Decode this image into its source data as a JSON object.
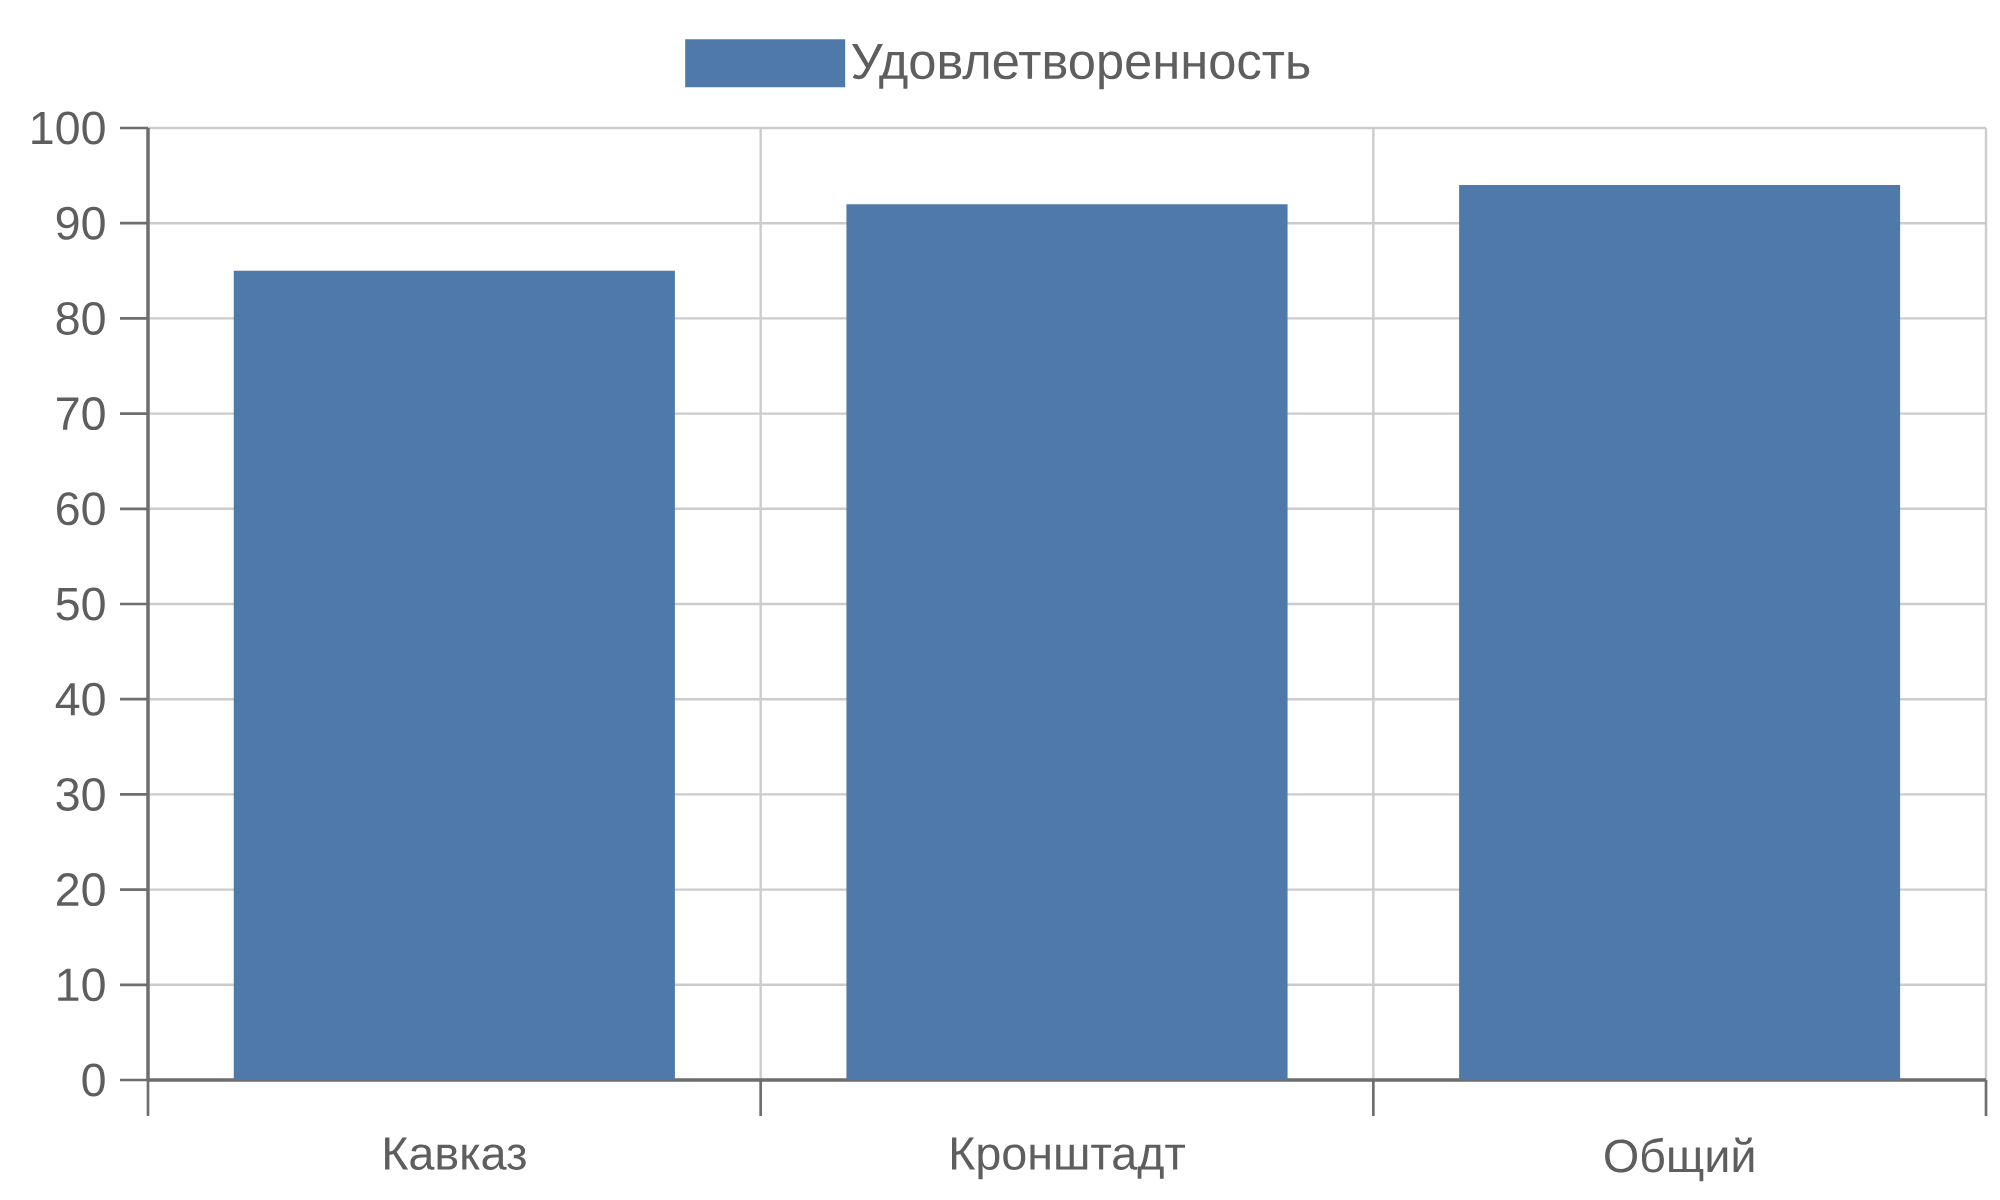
{
  "chart_data": {
    "type": "bar",
    "categories": [
      "Кавказ",
      "Кронштадт",
      "Общий"
    ],
    "series": [
      {
        "name": "Удовлетворенность",
        "color": "#4e79a8",
        "values": [
          85,
          92,
          94
        ]
      }
    ],
    "ylim": [
      0,
      100
    ],
    "yticks": [
      0,
      10,
      20,
      30,
      40,
      50,
      60,
      70,
      80,
      90,
      100
    ],
    "grid": true,
    "legend": "top"
  }
}
